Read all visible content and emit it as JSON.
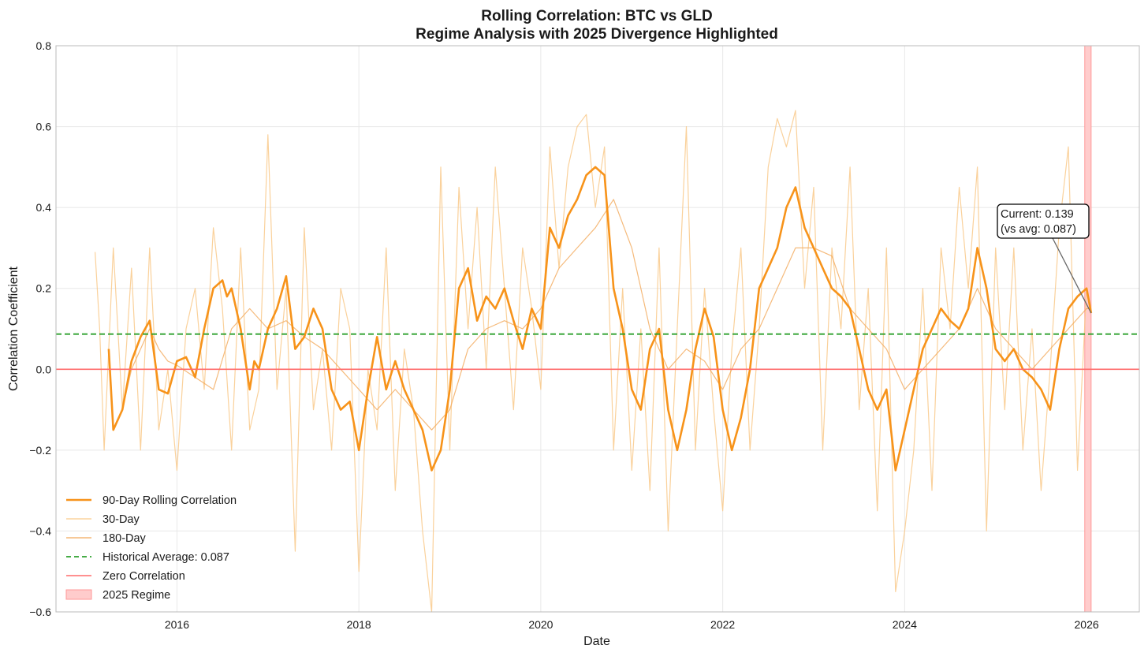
{
  "chart_data": {
    "type": "line",
    "title_line1": "Rolling Correlation: BTC vs GLD",
    "title_line2": "Regime Analysis with 2025 Divergence Highlighted",
    "xlabel": "Date",
    "ylabel": "Correlation Coefficient",
    "xlim": [
      2014.67,
      2026.58
    ],
    "ylim": [
      -0.6,
      0.8
    ],
    "x_ticks": [
      2016,
      2018,
      2020,
      2022,
      2024,
      2026
    ],
    "x_tick_labels": [
      "2016",
      "2018",
      "2020",
      "2022",
      "2024",
      "2026"
    ],
    "y_ticks": [
      -0.6,
      -0.4,
      -0.2,
      0.0,
      0.2,
      0.4,
      0.6,
      0.8
    ],
    "y_tick_labels": [
      "−0.6",
      "−0.4",
      "−0.2",
      "0.0",
      "0.2",
      "0.4",
      "0.6",
      "0.8"
    ],
    "grid": true,
    "legend_position": "lower-left",
    "historical_average": 0.087,
    "zero_line": 0.0,
    "regime_span": [
      2025.98,
      2026.05
    ],
    "colors": {
      "rolling_90": "#f7931a",
      "rolling_30": "#f9c98a",
      "rolling_180": "#f2a95a",
      "historical_avg": "#2ca02c",
      "zero": "#ff6b6b",
      "regime_fill": "#ffcccc",
      "regime_edge": "#ff9999",
      "callout_arrow": "#666666"
    },
    "legend": [
      {
        "key": "rolling_90",
        "label": "90-Day Rolling Correlation",
        "style": "thick"
      },
      {
        "key": "rolling_30",
        "label": "30-Day",
        "style": "thin"
      },
      {
        "key": "rolling_180",
        "label": "180-Day",
        "style": "thin"
      },
      {
        "key": "historical_avg",
        "label": "Historical Average: 0.087",
        "style": "dashed"
      },
      {
        "key": "zero",
        "label": "Zero Correlation",
        "style": "line"
      },
      {
        "key": "regime_fill",
        "label": "2025 Regime",
        "style": "patch"
      }
    ],
    "annotation": {
      "line1": "Current: 0.139",
      "line2": "(vs avg: 0.087)",
      "target": [
        2026.05,
        0.139
      ],
      "text_anchor": [
        2025.18,
        0.39
      ]
    },
    "series": [
      {
        "name": "90-Day Rolling Correlation",
        "key": "rolling_90",
        "x": [
          2015.25,
          2015.3,
          2015.4,
          2015.5,
          2015.6,
          2015.7,
          2015.8,
          2015.9,
          2016.0,
          2016.1,
          2016.2,
          2016.3,
          2016.4,
          2016.5,
          2016.55,
          2016.6,
          2016.7,
          2016.8,
          2016.85,
          2016.9,
          2017.0,
          2017.1,
          2017.2,
          2017.3,
          2017.4,
          2017.5,
          2017.6,
          2017.7,
          2017.8,
          2017.9,
          2018.0,
          2018.1,
          2018.2,
          2018.3,
          2018.4,
          2018.5,
          2018.6,
          2018.7,
          2018.8,
          2018.9,
          2019.0,
          2019.1,
          2019.2,
          2019.3,
          2019.4,
          2019.5,
          2019.6,
          2019.7,
          2019.8,
          2019.9,
          2020.0,
          2020.1,
          2020.2,
          2020.3,
          2020.4,
          2020.5,
          2020.6,
          2020.7,
          2020.8,
          2020.9,
          2021.0,
          2021.1,
          2021.2,
          2021.3,
          2021.4,
          2021.5,
          2021.6,
          2021.7,
          2021.8,
          2021.9,
          2022.0,
          2022.1,
          2022.2,
          2022.3,
          2022.4,
          2022.5,
          2022.6,
          2022.7,
          2022.8,
          2022.9,
          2023.0,
          2023.1,
          2023.2,
          2023.3,
          2023.4,
          2023.5,
          2023.6,
          2023.7,
          2023.8,
          2023.9,
          2024.0,
          2024.1,
          2024.2,
          2024.3,
          2024.4,
          2024.5,
          2024.6,
          2024.7,
          2024.8,
          2024.9,
          2025.0,
          2025.1,
          2025.2,
          2025.3,
          2025.4,
          2025.5,
          2025.6,
          2025.7,
          2025.8,
          2025.9,
          2026.0,
          2026.05
        ],
        "values": [
          0.05,
          -0.15,
          -0.1,
          0.02,
          0.08,
          0.12,
          -0.05,
          -0.06,
          0.02,
          0.03,
          -0.02,
          0.1,
          0.2,
          0.22,
          0.18,
          0.2,
          0.1,
          -0.05,
          0.02,
          0.0,
          0.1,
          0.15,
          0.23,
          0.05,
          0.08,
          0.15,
          0.1,
          -0.05,
          -0.1,
          -0.08,
          -0.2,
          -0.05,
          0.08,
          -0.05,
          0.02,
          -0.05,
          -0.1,
          -0.15,
          -0.25,
          -0.2,
          -0.05,
          0.2,
          0.25,
          0.12,
          0.18,
          0.15,
          0.2,
          0.12,
          0.05,
          0.15,
          0.1,
          0.35,
          0.3,
          0.38,
          0.42,
          0.48,
          0.5,
          0.48,
          0.2,
          0.1,
          -0.05,
          -0.1,
          0.05,
          0.1,
          -0.1,
          -0.2,
          -0.1,
          0.05,
          0.15,
          0.08,
          -0.1,
          -0.2,
          -0.12,
          0.0,
          0.2,
          0.25,
          0.3,
          0.4,
          0.45,
          0.35,
          0.3,
          0.25,
          0.2,
          0.18,
          0.15,
          0.05,
          -0.05,
          -0.1,
          -0.05,
          -0.25,
          -0.15,
          -0.05,
          0.05,
          0.1,
          0.15,
          0.12,
          0.1,
          0.15,
          0.3,
          0.2,
          0.05,
          0.02,
          0.05,
          0.0,
          -0.02,
          -0.05,
          -0.1,
          0.05,
          0.15,
          0.18,
          0.2,
          0.139
        ]
      },
      {
        "name": "30-Day",
        "key": "rolling_30",
        "x": [
          2015.1,
          2015.15,
          2015.2,
          2015.3,
          2015.4,
          2015.5,
          2015.6,
          2015.7,
          2015.8,
          2015.9,
          2016.0,
          2016.1,
          2016.2,
          2016.3,
          2016.4,
          2016.5,
          2016.6,
          2016.7,
          2016.8,
          2016.9,
          2017.0,
          2017.1,
          2017.2,
          2017.3,
          2017.4,
          2017.5,
          2017.6,
          2017.7,
          2017.8,
          2017.9,
          2018.0,
          2018.1,
          2018.2,
          2018.3,
          2018.4,
          2018.5,
          2018.6,
          2018.7,
          2018.8,
          2018.9,
          2019.0,
          2019.1,
          2019.2,
          2019.3,
          2019.4,
          2019.5,
          2019.6,
          2019.7,
          2019.8,
          2019.9,
          2020.0,
          2020.1,
          2020.2,
          2020.3,
          2020.4,
          2020.5,
          2020.6,
          2020.7,
          2020.8,
          2020.9,
          2021.0,
          2021.1,
          2021.2,
          2021.3,
          2021.4,
          2021.5,
          2021.6,
          2021.7,
          2021.8,
          2021.9,
          2022.0,
          2022.1,
          2022.2,
          2022.3,
          2022.4,
          2022.5,
          2022.6,
          2022.7,
          2022.8,
          2022.9,
          2023.0,
          2023.1,
          2023.2,
          2023.3,
          2023.4,
          2023.5,
          2023.6,
          2023.7,
          2023.8,
          2023.9,
          2024.0,
          2024.1,
          2024.2,
          2024.3,
          2024.4,
          2024.5,
          2024.6,
          2024.7,
          2024.8,
          2024.9,
          2025.0,
          2025.1,
          2025.2,
          2025.3,
          2025.4,
          2025.5,
          2025.6,
          2025.7,
          2025.8,
          2025.9,
          2026.0,
          2026.05
        ],
        "values": [
          0.29,
          0.1,
          -0.2,
          0.3,
          -0.1,
          0.25,
          -0.2,
          0.3,
          -0.15,
          0.0,
          -0.25,
          0.1,
          0.2,
          -0.05,
          0.35,
          0.15,
          -0.2,
          0.3,
          -0.15,
          -0.05,
          0.58,
          -0.05,
          0.2,
          -0.45,
          0.35,
          -0.1,
          0.05,
          -0.2,
          0.2,
          0.1,
          -0.5,
          0.0,
          -0.15,
          0.3,
          -0.3,
          0.05,
          -0.1,
          -0.4,
          -0.6,
          0.5,
          -0.2,
          0.45,
          0.1,
          0.4,
          0.0,
          0.5,
          0.2,
          -0.1,
          0.3,
          0.15,
          -0.05,
          0.55,
          0.25,
          0.5,
          0.6,
          0.63,
          0.4,
          0.55,
          -0.2,
          0.2,
          -0.25,
          0.1,
          -0.3,
          0.3,
          -0.4,
          0.1,
          0.6,
          -0.2,
          0.2,
          -0.1,
          -0.35,
          0.05,
          0.3,
          -0.2,
          0.1,
          0.5,
          0.62,
          0.55,
          0.64,
          0.2,
          0.45,
          -0.2,
          0.3,
          0.1,
          0.5,
          -0.1,
          0.2,
          -0.35,
          0.3,
          -0.55,
          -0.4,
          -0.2,
          0.2,
          -0.3,
          0.3,
          0.1,
          0.45,
          0.2,
          0.5,
          -0.4,
          0.3,
          -0.1,
          0.3,
          -0.2,
          0.1,
          -0.3,
          0.0,
          0.35,
          0.55,
          -0.25,
          0.2,
          0.15
        ]
      },
      {
        "name": "180-Day",
        "key": "rolling_180",
        "x": [
          2015.4,
          2015.5,
          2015.6,
          2015.7,
          2015.8,
          2015.9,
          2016.0,
          2016.2,
          2016.4,
          2016.6,
          2016.8,
          2017.0,
          2017.2,
          2017.4,
          2017.6,
          2017.8,
          2018.0,
          2018.2,
          2018.4,
          2018.6,
          2018.8,
          2019.0,
          2019.2,
          2019.4,
          2019.6,
          2019.8,
          2020.0,
          2020.2,
          2020.4,
          2020.6,
          2020.8,
          2021.0,
          2021.2,
          2021.4,
          2021.6,
          2021.8,
          2022.0,
          2022.2,
          2022.4,
          2022.6,
          2022.8,
          2023.0,
          2023.2,
          2023.4,
          2023.6,
          2023.8,
          2024.0,
          2024.2,
          2024.4,
          2024.6,
          2024.8,
          2025.0,
          2025.2,
          2025.4,
          2025.6,
          2025.8,
          2026.0,
          2026.05
        ],
        "values": [
          -0.1,
          0.0,
          0.05,
          0.1,
          0.05,
          0.02,
          0.01,
          -0.02,
          -0.05,
          0.1,
          0.15,
          0.1,
          0.12,
          0.08,
          0.05,
          0.0,
          -0.05,
          -0.1,
          -0.05,
          -0.1,
          -0.15,
          -0.1,
          0.05,
          0.1,
          0.12,
          0.1,
          0.15,
          0.25,
          0.3,
          0.35,
          0.42,
          0.3,
          0.1,
          0.0,
          0.05,
          0.02,
          -0.05,
          0.05,
          0.1,
          0.2,
          0.3,
          0.3,
          0.28,
          0.15,
          0.1,
          0.05,
          -0.05,
          0.0,
          0.05,
          0.1,
          0.2,
          0.1,
          0.05,
          0.0,
          0.05,
          0.1,
          0.15,
          0.15
        ]
      }
    ]
  }
}
